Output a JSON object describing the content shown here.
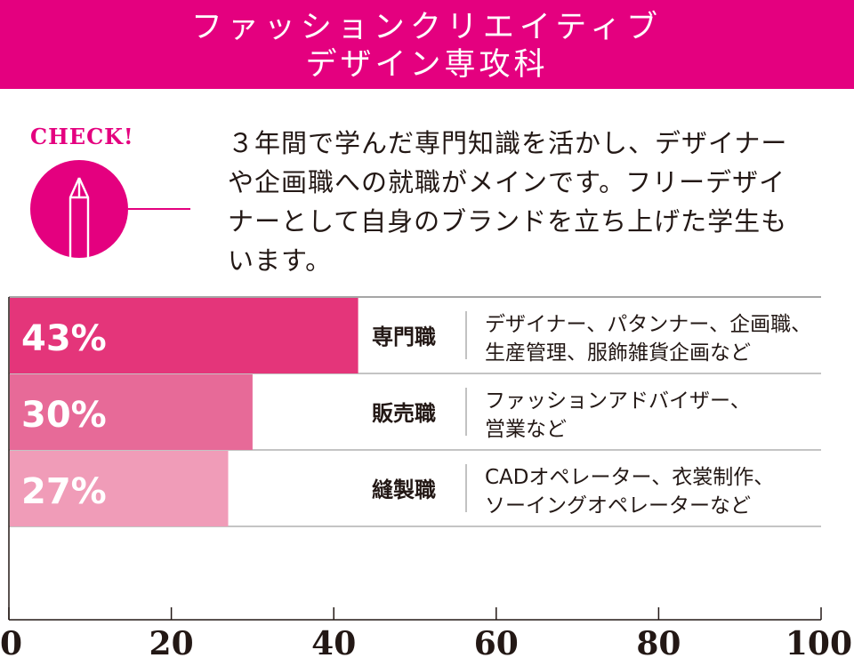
{
  "header": {
    "title_line1": "ファッションクリエイティブ",
    "title_line2": "デザイン専攻科",
    "color": "#e4007f"
  },
  "check": {
    "label": "CHECK!",
    "icon": "pen-nib-icon"
  },
  "description": {
    "lines": [
      "３年間で学んだ専門知識を活かし、デザイナー",
      "や企画職への就職がメインです。フリーデザイ",
      "ナーとして自身のブランドを立ち上げた学生も",
      "います。"
    ]
  },
  "chart_data": {
    "type": "bar",
    "orientation": "horizontal",
    "categories": [
      "専門職",
      "販売職",
      "縫製職"
    ],
    "values": [
      43,
      30,
      27
    ],
    "value_labels": [
      "43%",
      "30%",
      "27%"
    ],
    "details": [
      [
        "デザイナー、パタンナー、企画職、",
        "生産管理、服飾雑貨企画など"
      ],
      [
        "ファッションアドバイザー、",
        "営業など"
      ],
      [
        "CADオペレーター、衣裳制作、",
        "ソーイングオペレーターなど"
      ]
    ],
    "colors": [
      "#e4357a",
      "#e76a98",
      "#f09cb8"
    ],
    "xlim": [
      0,
      100
    ],
    "xticks": [
      "0",
      "20",
      "40",
      "60",
      "80",
      "100"
    ],
    "grid": false
  }
}
